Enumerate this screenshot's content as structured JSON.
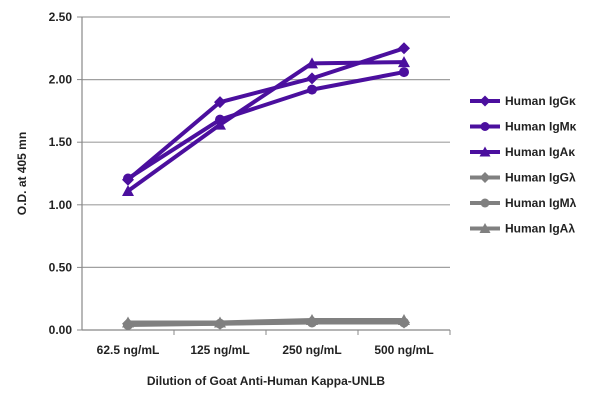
{
  "chart_data": {
    "type": "line",
    "title": "",
    "xlabel": "Dilution of Goat Anti-Human Kappa-UNLB",
    "ylabel": "O.D. at 405 mn",
    "categories": [
      "62.5 ng/mL",
      "125 ng/mL",
      "250 ng/mL",
      "500 ng/mL"
    ],
    "ylim": [
      0,
      2.5
    ],
    "yticks": [
      "0.00",
      "0.50",
      "1.00",
      "1.50",
      "2.00",
      "2.50"
    ],
    "grid": true,
    "legend_position": "right",
    "series": [
      {
        "name": "Human IgGκ",
        "marker": "diamond",
        "color": "#4B0F9E",
        "values": [
          1.2,
          1.82,
          2.01,
          2.25
        ]
      },
      {
        "name": "Human IgMκ",
        "marker": "circle",
        "color": "#4B0F9E",
        "values": [
          1.21,
          1.68,
          1.92,
          2.06
        ]
      },
      {
        "name": "Human IgAκ",
        "marker": "triangle",
        "color": "#4B0F9E",
        "values": [
          1.11,
          1.64,
          2.13,
          2.14
        ]
      },
      {
        "name": "Human IgGλ",
        "marker": "diamond",
        "color": "#808080",
        "values": [
          0.05,
          0.05,
          0.07,
          0.06
        ]
      },
      {
        "name": "Human IgMλ",
        "marker": "circle",
        "color": "#808080",
        "values": [
          0.04,
          0.05,
          0.06,
          0.06
        ]
      },
      {
        "name": "Human IgAλ",
        "marker": "triangle",
        "color": "#808080",
        "values": [
          0.06,
          0.06,
          0.08,
          0.08
        ]
      }
    ]
  }
}
